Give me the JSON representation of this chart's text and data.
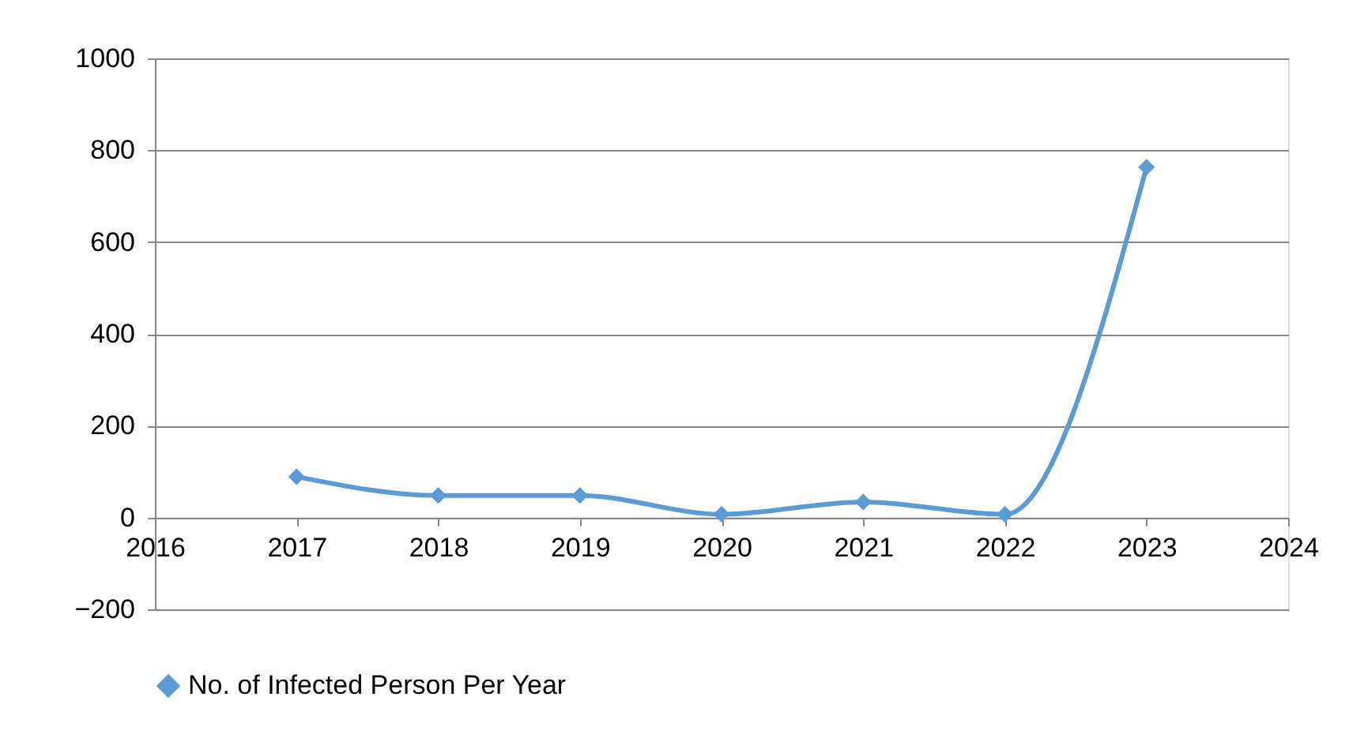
{
  "chart_data": {
    "type": "line",
    "x": [
      2017,
      2018,
      2019,
      2020,
      2021,
      2022,
      2023
    ],
    "series": [
      {
        "name": "No. of Infected Person Per Year",
        "color": "#5b9bd5",
        "values": [
          89,
          48,
          48,
          7,
          34,
          7,
          763
        ]
      }
    ],
    "xlim": [
      2016,
      2024
    ],
    "xticks": [
      2016,
      2017,
      2018,
      2019,
      2020,
      2021,
      2022,
      2023,
      2024
    ],
    "ylim": [
      -200,
      1000
    ],
    "yticks": [
      -200,
      0,
      200,
      400,
      600,
      800,
      1000
    ],
    "grid": "y",
    "legend": "bottom",
    "marker": "diamond",
    "line_style": "solid"
  }
}
